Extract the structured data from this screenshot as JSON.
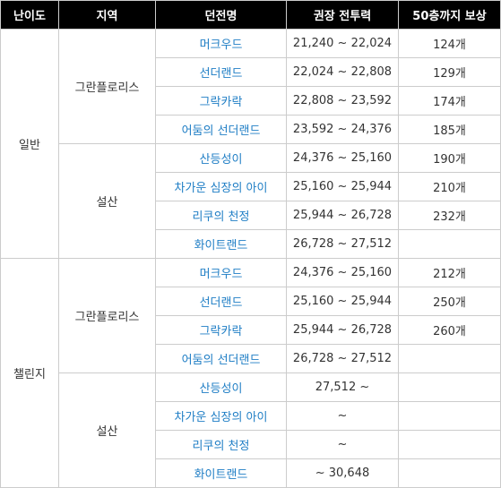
{
  "headers": {
    "difficulty": "난이도",
    "region": "지역",
    "dungeon": "던전명",
    "power": "권장 전투력",
    "reward": "50층까지 보상"
  },
  "difficulties": [
    "일반",
    "챌린지"
  ],
  "regions": [
    "그란플로리스",
    "설산",
    "그란플로리스",
    "설산"
  ],
  "rows": [
    {
      "dungeon": "머크우드",
      "power": "21,240 ~ 22,024",
      "reward": "124개"
    },
    {
      "dungeon": "선더랜드",
      "power": "22,024 ~ 22,808",
      "reward": "129개"
    },
    {
      "dungeon": "그락카락",
      "power": "22,808 ~ 23,592",
      "reward": "174개"
    },
    {
      "dungeon": "어둠의 선더랜드",
      "power": "23,592 ~ 24,376",
      "reward": "185개"
    },
    {
      "dungeon": "산등성이",
      "power": "24,376 ~ 25,160",
      "reward": "190개"
    },
    {
      "dungeon": "차가운 심장의 아이",
      "power": "25,160 ~ 25,944",
      "reward": "210개"
    },
    {
      "dungeon": "리쿠의 천정",
      "power": "25,944 ~ 26,728",
      "reward": "232개"
    },
    {
      "dungeon": "화이트랜드",
      "power": "26,728 ~ 27,512",
      "reward": ""
    },
    {
      "dungeon": "머크우드",
      "power": "24,376 ~ 25,160",
      "reward": "212개"
    },
    {
      "dungeon": "선더랜드",
      "power": "25,160 ~ 25,944",
      "reward": "250개"
    },
    {
      "dungeon": "그락카락",
      "power": "25,944 ~ 26,728",
      "reward": "260개"
    },
    {
      "dungeon": "어둠의 선더랜드",
      "power": "26,728 ~ 27,512",
      "reward": ""
    },
    {
      "dungeon": "산등성이",
      "power": "27,512 ~",
      "reward": ""
    },
    {
      "dungeon": "차가운 심장의 아이",
      "power": "~",
      "reward": ""
    },
    {
      "dungeon": "리쿠의 천정",
      "power": "~",
      "reward": ""
    },
    {
      "dungeon": "화이트랜드",
      "power": "~ 30,648",
      "reward": ""
    }
  ],
  "colors": {
    "header_bg": "#000000",
    "header_text": "#ffffff",
    "link": "#1f7ec5",
    "border": "#cccccc"
  }
}
